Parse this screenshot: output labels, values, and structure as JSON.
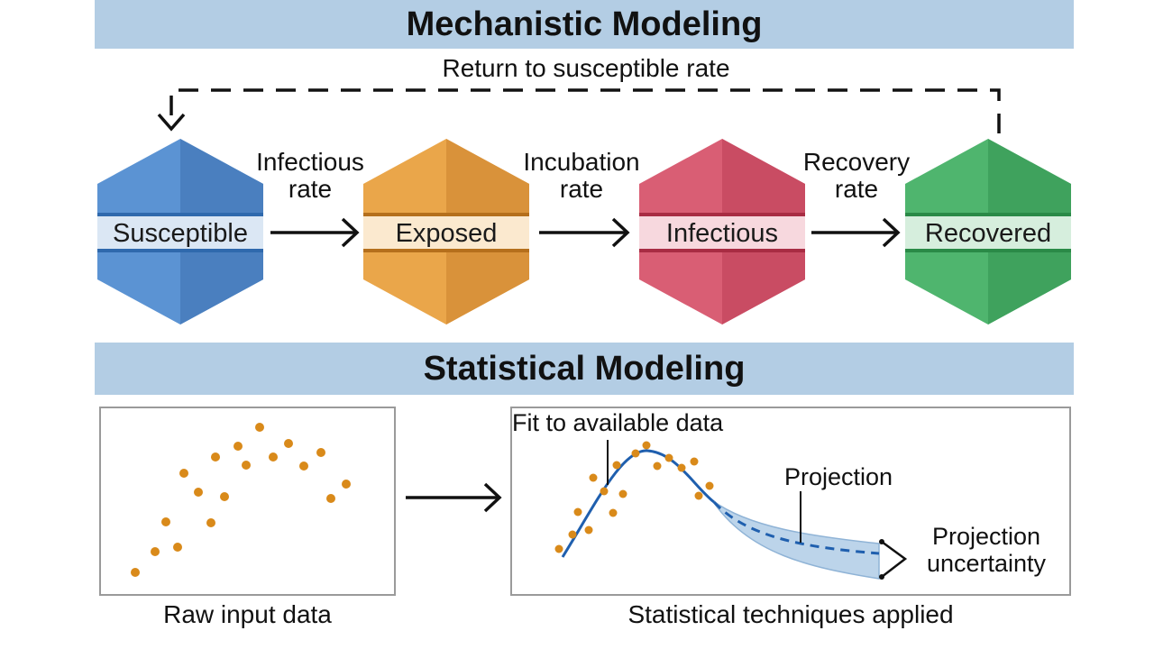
{
  "mechanistic": {
    "title": "Mechanistic Modeling",
    "return_label": "Return to susceptible rate",
    "compartments": [
      {
        "label": "Susceptible",
        "color": "#5b93d3",
        "dark": "#4a7fbf",
        "band": "#dbe7f4",
        "line": "#2f69ad"
      },
      {
        "label": "Exposed",
        "color": "#eaa64a",
        "dark": "#d9923a",
        "band": "#fbe9cf",
        "line": "#b56f1c"
      },
      {
        "label": "Infectious",
        "color": "#d95e74",
        "dark": "#c94c63",
        "band": "#f7d8de",
        "line": "#a82c43"
      },
      {
        "label": "Recovered",
        "color": "#4fb56e",
        "dark": "#3fa25d",
        "band": "#d6eedd",
        "line": "#2a8a47"
      }
    ],
    "rates": [
      {
        "line1": "Infectious",
        "line2": "rate"
      },
      {
        "line1": "Incubation",
        "line2": "rate"
      },
      {
        "line1": "Recovery",
        "line2": "rate"
      }
    ]
  },
  "statistical": {
    "title": "Statistical Modeling",
    "raw_caption": "Raw input data",
    "applied_caption": "Statistical techniques applied",
    "fit_label": "Fit to available data",
    "projection_label": "Projection",
    "uncertainty_line1": "Projection",
    "uncertainty_line2": "uncertainty",
    "dot_color": "#d98a1a",
    "fit_color": "#1f5fae",
    "band_color": "#bcd4ea"
  }
}
